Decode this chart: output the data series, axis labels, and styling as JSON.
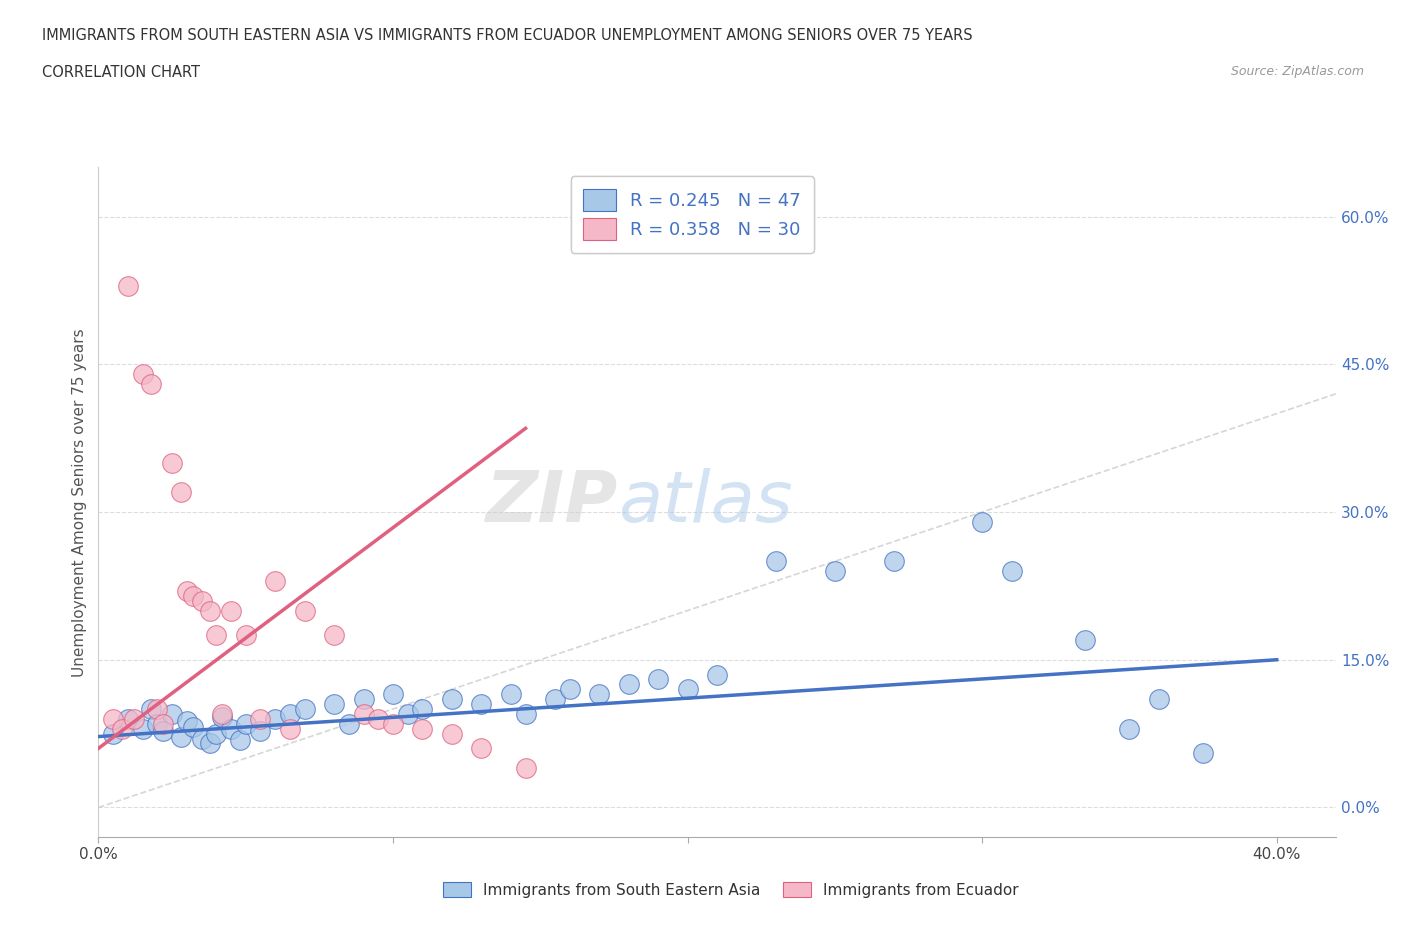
{
  "title_line1": "IMMIGRANTS FROM SOUTH EASTERN ASIA VS IMMIGRANTS FROM ECUADOR UNEMPLOYMENT AMONG SENIORS OVER 75 YEARS",
  "title_line2": "CORRELATION CHART",
  "source": "Source: ZipAtlas.com",
  "ylabel": "Unemployment Among Seniors over 75 years",
  "x_min": 0.0,
  "x_max": 0.42,
  "y_min": -0.03,
  "y_max": 0.65,
  "y_ticks_right": [
    0.0,
    0.15,
    0.3,
    0.45,
    0.6
  ],
  "y_tick_labels_right": [
    "0.0%",
    "15.0%",
    "30.0%",
    "45.0%",
    "60.0%"
  ],
  "color_blue": "#a8c8e8",
  "color_blue_line": "#4472c4",
  "color_pink": "#f4b8c8",
  "color_pink_line": "#e06080",
  "color_diag": "#cccccc",
  "R_blue": 0.245,
  "N_blue": 47,
  "R_pink": 0.358,
  "N_pink": 30,
  "legend_label_blue": "Immigrants from South Eastern Asia",
  "legend_label_pink": "Immigrants from Ecuador",
  "watermark_left": "ZIP",
  "watermark_right": "atlas",
  "blue_scatter_x": [
    0.005,
    0.01,
    0.015,
    0.018,
    0.02,
    0.022,
    0.025,
    0.028,
    0.03,
    0.032,
    0.035,
    0.038,
    0.04,
    0.042,
    0.045,
    0.048,
    0.05,
    0.055,
    0.06,
    0.065,
    0.07,
    0.08,
    0.085,
    0.09,
    0.1,
    0.105,
    0.11,
    0.12,
    0.13,
    0.14,
    0.145,
    0.155,
    0.16,
    0.17,
    0.18,
    0.19,
    0.2,
    0.21,
    0.23,
    0.25,
    0.27,
    0.3,
    0.31,
    0.335,
    0.35,
    0.36,
    0.375
  ],
  "blue_scatter_y": [
    0.075,
    0.09,
    0.08,
    0.1,
    0.085,
    0.078,
    0.095,
    0.072,
    0.088,
    0.082,
    0.07,
    0.065,
    0.075,
    0.092,
    0.08,
    0.068,
    0.085,
    0.078,
    0.09,
    0.095,
    0.1,
    0.105,
    0.085,
    0.11,
    0.115,
    0.095,
    0.1,
    0.11,
    0.105,
    0.115,
    0.095,
    0.11,
    0.12,
    0.115,
    0.125,
    0.13,
    0.12,
    0.135,
    0.25,
    0.24,
    0.25,
    0.29,
    0.24,
    0.17,
    0.08,
    0.11,
    0.055
  ],
  "pink_scatter_x": [
    0.005,
    0.008,
    0.01,
    0.012,
    0.015,
    0.018,
    0.02,
    0.022,
    0.025,
    0.028,
    0.03,
    0.032,
    0.035,
    0.038,
    0.04,
    0.042,
    0.045,
    0.05,
    0.055,
    0.06,
    0.065,
    0.07,
    0.08,
    0.09,
    0.095,
    0.1,
    0.11,
    0.12,
    0.13,
    0.145
  ],
  "pink_scatter_y": [
    0.09,
    0.08,
    0.53,
    0.09,
    0.44,
    0.43,
    0.1,
    0.085,
    0.35,
    0.32,
    0.22,
    0.215,
    0.21,
    0.2,
    0.175,
    0.095,
    0.2,
    0.175,
    0.09,
    0.23,
    0.08,
    0.2,
    0.175,
    0.095,
    0.09,
    0.085,
    0.08,
    0.075,
    0.06,
    0.04
  ],
  "blue_line_x0": 0.0,
  "blue_line_y0": 0.072,
  "blue_line_x1": 0.4,
  "blue_line_y1": 0.15,
  "pink_line_x0": 0.0,
  "pink_line_y0": 0.06,
  "pink_line_x1": 0.145,
  "pink_line_y1": 0.385
}
